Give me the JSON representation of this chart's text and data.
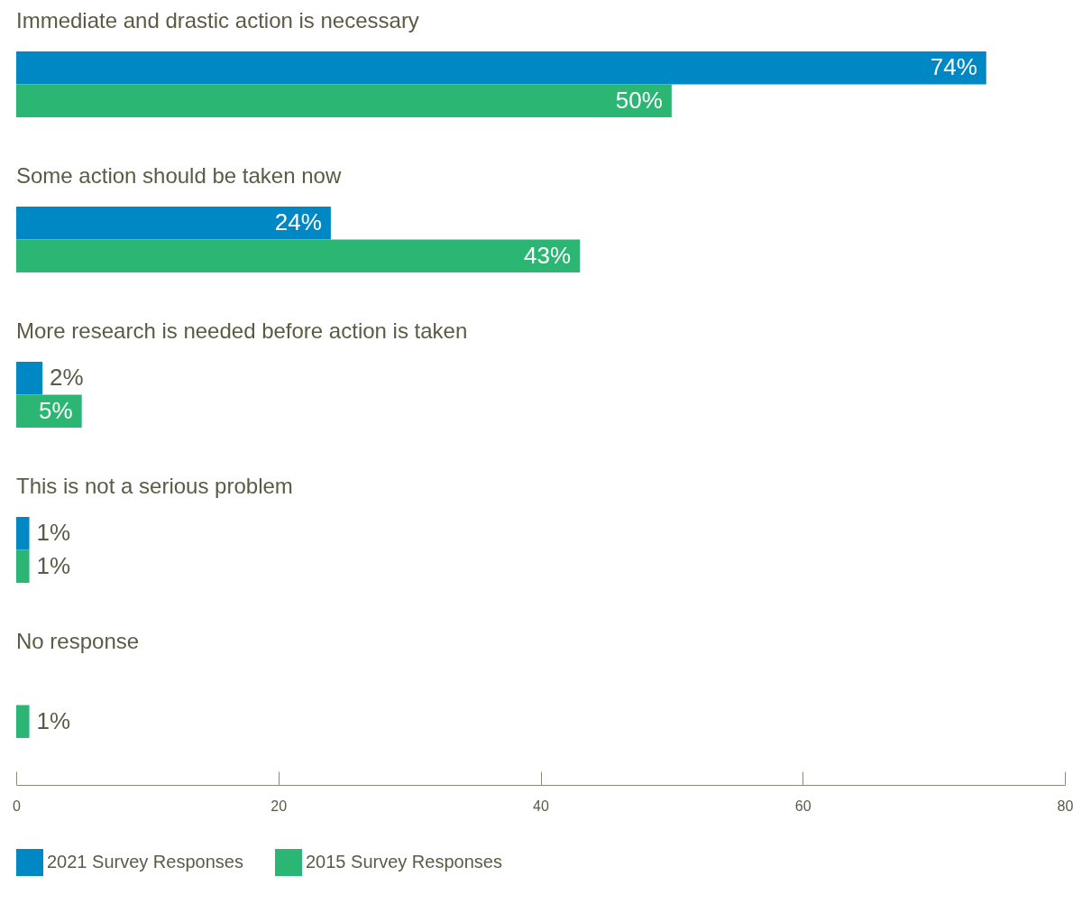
{
  "chart_data": {
    "type": "bar",
    "orientation": "horizontal",
    "categories": [
      "Immediate and drastic action is necessary",
      "Some action should be taken now",
      "More research is needed before action is taken",
      "This is not a serious problem",
      "No response"
    ],
    "series": [
      {
        "name": "2021 Survey Responses",
        "color": "#0088c4",
        "values": [
          74,
          24,
          2,
          1,
          null
        ],
        "value_labels": [
          "74%",
          "24%",
          "2%",
          "1%",
          null
        ]
      },
      {
        "name": "2015 Survey Responses",
        "color": "#2bb673",
        "values": [
          50,
          43,
          5,
          1,
          1
        ],
        "value_labels": [
          "50%",
          "43%",
          "5%",
          "1%",
          "1%"
        ]
      }
    ],
    "xlim": [
      0,
      80
    ],
    "xticks": [
      0,
      20,
      40,
      60,
      80
    ],
    "grid": false,
    "legend": "bottom"
  }
}
